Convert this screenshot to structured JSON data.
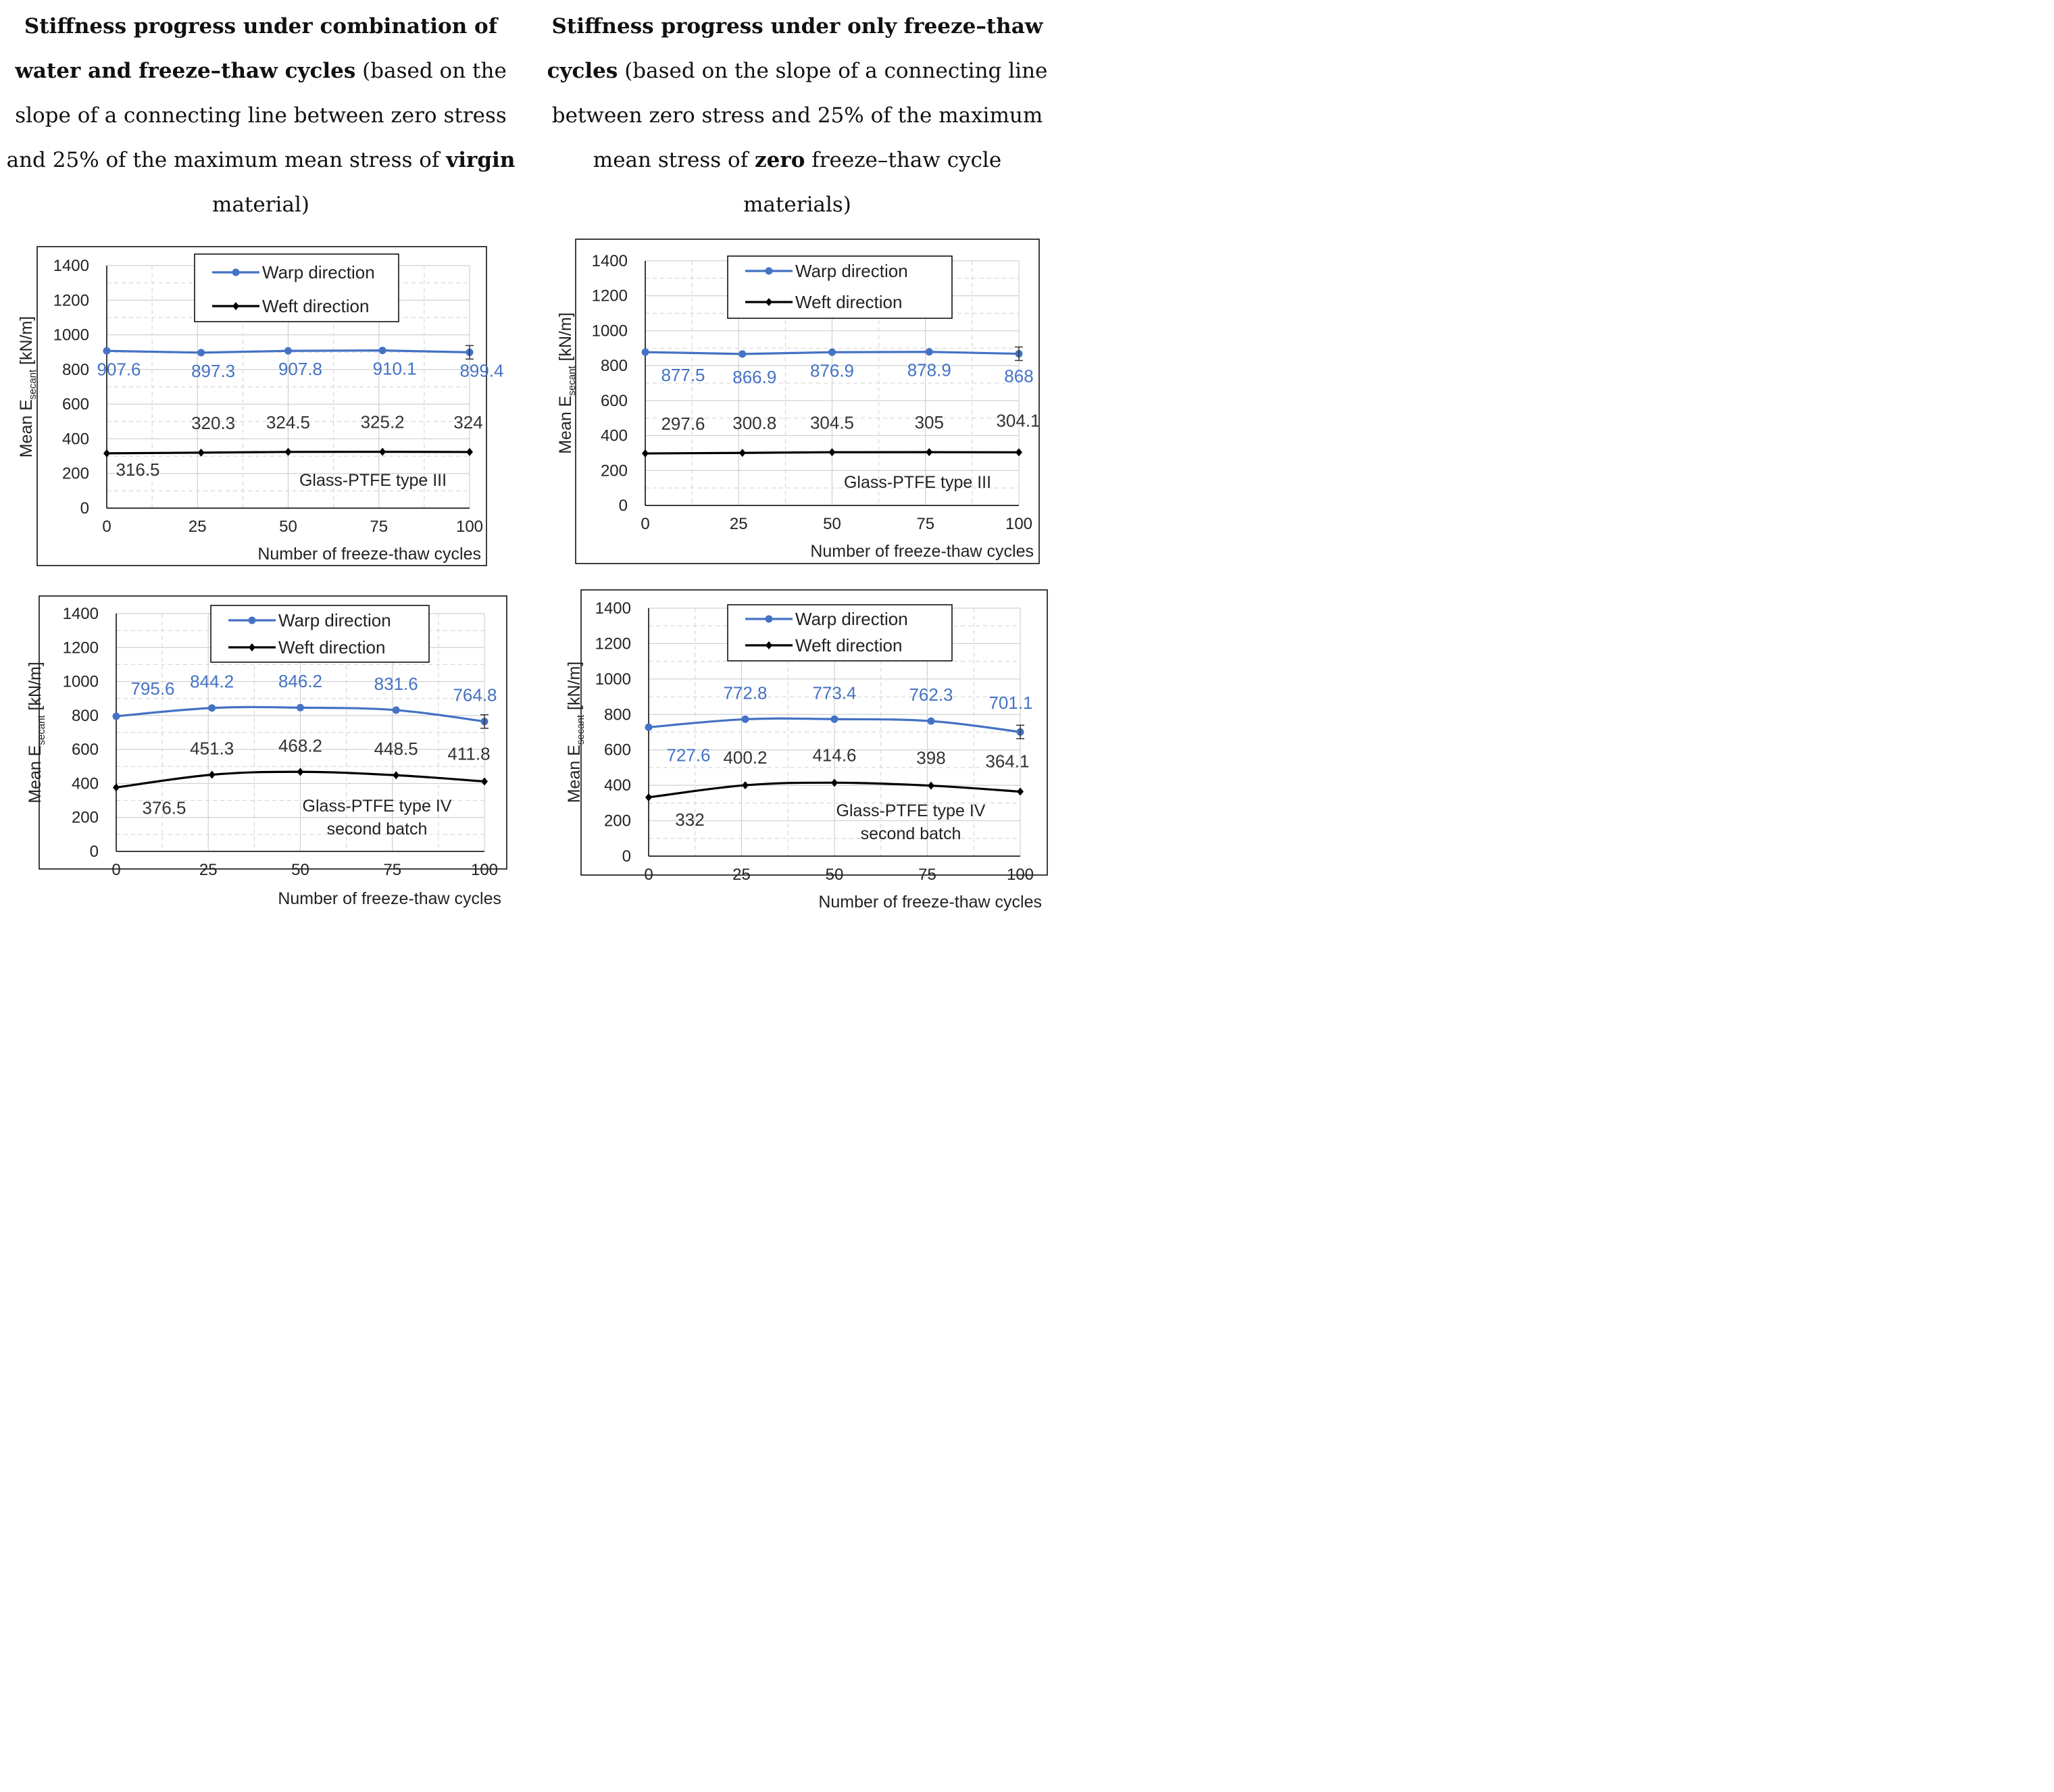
{
  "headings": {
    "left": {
      "bold": "Stiffness progress under combination of water and freeze–thaw cycles",
      "text_a": " (based on the slope of a connecting line between zero stress and 25% of the maximum mean stress of ",
      "bold2": "virgin",
      "text_b": " material)"
    },
    "right": {
      "bold": "Stiffness progress under only freeze–thaw cycles",
      "text_a": " (based on the slope of a connecting line between zero stress and 25% of the maximum mean stress of ",
      "bold2": "zero",
      "text_b": " freeze–thaw cycle materials)"
    }
  },
  "colors": {
    "warp": "#4472C4",
    "weft": "#000000",
    "grid": "#d0d0d0",
    "label_warp": "#4472C4",
    "label_weft": "#333333"
  },
  "chart_data": [
    {
      "type": "line",
      "xlabel": "Number of freeze-thaw cycles",
      "ylabel": "Mean E",
      "ylabel_sub": "secant",
      "ylabel_unit": " [kN/m]",
      "xticks": [
        0,
        25,
        50,
        75,
        100
      ],
      "xtick_labels": [
        "0",
        "25",
        "50",
        "75",
        "100"
      ],
      "yticks": [
        0,
        200,
        400,
        600,
        800,
        1000,
        1200,
        1400
      ],
      "ytick_labels": [
        "0",
        "200",
        "400",
        "600",
        "800",
        "1000",
        "1200",
        "1400"
      ],
      "xlim": [
        0,
        100
      ],
      "ylim": [
        0,
        1400
      ],
      "annotation": [
        "Glass-PTFE type III"
      ],
      "series": [
        {
          "name": "Warp direction",
          "x": [
            0,
            26,
            50,
            76,
            100
          ],
          "values": [
            907.6,
            897.3,
            907.8,
            910.1,
            899.4
          ],
          "labels": [
            "907.6",
            "897.3",
            "907.8",
            "910.1",
            "899.4"
          ]
        },
        {
          "name": "Weft direction",
          "x": [
            0,
            26,
            50,
            76,
            100
          ],
          "values": [
            316.5,
            320.3,
            324.5,
            325.2,
            324
          ],
          "labels": [
            "316.5",
            "320.3",
            "324.5",
            "325.2",
            "324"
          ]
        }
      ]
    },
    {
      "type": "line",
      "xlabel": "Number of freeze-thaw cycles",
      "ylabel": "Mean E",
      "ylabel_sub": "secant",
      "ylabel_unit": " [kN/m]",
      "xticks": [
        0,
        25,
        50,
        75,
        100
      ],
      "xtick_labels": [
        "0",
        "25",
        "50",
        "75",
        "100"
      ],
      "yticks": [
        0,
        200,
        400,
        600,
        800,
        1000,
        1200,
        1400
      ],
      "ytick_labels": [
        "0",
        "200",
        "400",
        "600",
        "800",
        "1000",
        "1200",
        "1400"
      ],
      "xlim": [
        0,
        100
      ],
      "ylim": [
        0,
        1400
      ],
      "annotation": [
        "Glass-PTFE type III"
      ],
      "series": [
        {
          "name": "Warp direction",
          "x": [
            0,
            26,
            50,
            76,
            100
          ],
          "values": [
            877.5,
            866.9,
            876.9,
            878.9,
            868
          ],
          "labels": [
            "877.5",
            "866.9",
            "876.9",
            "878.9",
            "868"
          ]
        },
        {
          "name": "Weft direction",
          "x": [
            0,
            26,
            50,
            76,
            100
          ],
          "values": [
            297.6,
            300.8,
            304.5,
            305,
            304.1
          ],
          "labels": [
            "297.6",
            "300.8",
            "304.5",
            "305",
            "304.1"
          ]
        }
      ]
    },
    {
      "type": "line",
      "xlabel": "Number of freeze-thaw cycles",
      "ylabel": "Mean E",
      "ylabel_sub": "secant",
      "ylabel_unit": " [kN/m]",
      "xticks": [
        0,
        25,
        50,
        75,
        100
      ],
      "xtick_labels": [
        "0",
        "25",
        "50",
        "75",
        "100"
      ],
      "yticks": [
        0,
        200,
        400,
        600,
        800,
        1000,
        1200,
        1400
      ],
      "ytick_labels": [
        "0",
        "200",
        "400",
        "600",
        "800",
        "1000",
        "1200",
        "1400"
      ],
      "xlim": [
        0,
        100
      ],
      "ylim": [
        0,
        1400
      ],
      "annotation": [
        "Glass-PTFE type IV",
        "second batch"
      ],
      "series": [
        {
          "name": "Warp direction",
          "x": [
            0,
            26,
            50,
            76,
            100
          ],
          "values": [
            795.6,
            844.2,
            846.2,
            831.6,
            764.8
          ],
          "labels": [
            "795.6",
            "844.2",
            "846.2",
            "831.6",
            "764.8"
          ]
        },
        {
          "name": "Weft direction",
          "x": [
            0,
            26,
            50,
            76,
            100
          ],
          "values": [
            376.5,
            451.3,
            468.2,
            448.5,
            411.8
          ],
          "labels": [
            "376.5",
            "451.3",
            "468.2",
            "448.5",
            "411.8"
          ]
        }
      ]
    },
    {
      "type": "line",
      "xlabel": "Number of freeze-thaw cycles",
      "ylabel": "Mean E",
      "ylabel_sub": "secant",
      "ylabel_unit": " [kN/m]",
      "xticks": [
        0,
        25,
        50,
        75,
        100
      ],
      "xtick_labels": [
        "0",
        "25",
        "50",
        "75",
        "100"
      ],
      "yticks": [
        0,
        200,
        400,
        600,
        800,
        1000,
        1200,
        1400
      ],
      "ytick_labels": [
        "0",
        "200",
        "400",
        "600",
        "800",
        "1000",
        "1200",
        "1400"
      ],
      "xlim": [
        0,
        100
      ],
      "ylim": [
        0,
        1400
      ],
      "annotation": [
        "Glass-PTFE type IV",
        "second batch"
      ],
      "series": [
        {
          "name": "Warp direction",
          "x": [
            0,
            26,
            50,
            76,
            100
          ],
          "values": [
            727.6,
            772.8,
            773.4,
            762.3,
            701.1
          ],
          "labels": [
            "727.6",
            "772.8",
            "773.4",
            "762.3",
            "701.1"
          ]
        },
        {
          "name": "Weft direction",
          "x": [
            0,
            26,
            50,
            76,
            100
          ],
          "values": [
            332,
            400.2,
            414.6,
            398,
            364.1
          ],
          "labels": [
            "332",
            "400.2",
            "414.6",
            "398",
            "364.1"
          ]
        }
      ]
    }
  ]
}
